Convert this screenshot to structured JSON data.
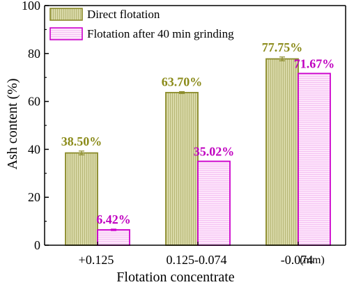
{
  "chart_data": {
    "type": "bar",
    "title": "",
    "xlabel": "Flotation concentrate",
    "ylabel": "Ash content (%)",
    "x_unit": "(mm)",
    "ylim": [
      0,
      100
    ],
    "y_ticks": [
      0,
      20,
      40,
      60,
      80,
      100
    ],
    "categories": [
      "+0.125",
      "0.125-0.074",
      "-0.074"
    ],
    "legend_position": "top-left",
    "series": [
      {
        "name": "Direct flotation",
        "values": [
          38.5,
          63.7,
          77.75
        ],
        "labels": [
          "38.50%",
          "63.70%",
          "77.75%"
        ],
        "errors": [
          0.8,
          0.4,
          0.8
        ],
        "fill": "#d9d9a8",
        "stroke": "#8b8b2a",
        "label_color": "#8b8b1a",
        "pattern": "vertical-lines"
      },
      {
        "name": "Flotation after 40 min grinding",
        "values": [
          6.42,
          35.02,
          71.67
        ],
        "labels": [
          "6.42%",
          "35.02%",
          "71.67%"
        ],
        "errors": [
          0.3,
          0.0,
          0.0
        ],
        "fill": "#fde6fb",
        "stroke": "#cc00cc",
        "label_color": "#c000c0",
        "pattern": "horizontal-lines"
      }
    ]
  }
}
